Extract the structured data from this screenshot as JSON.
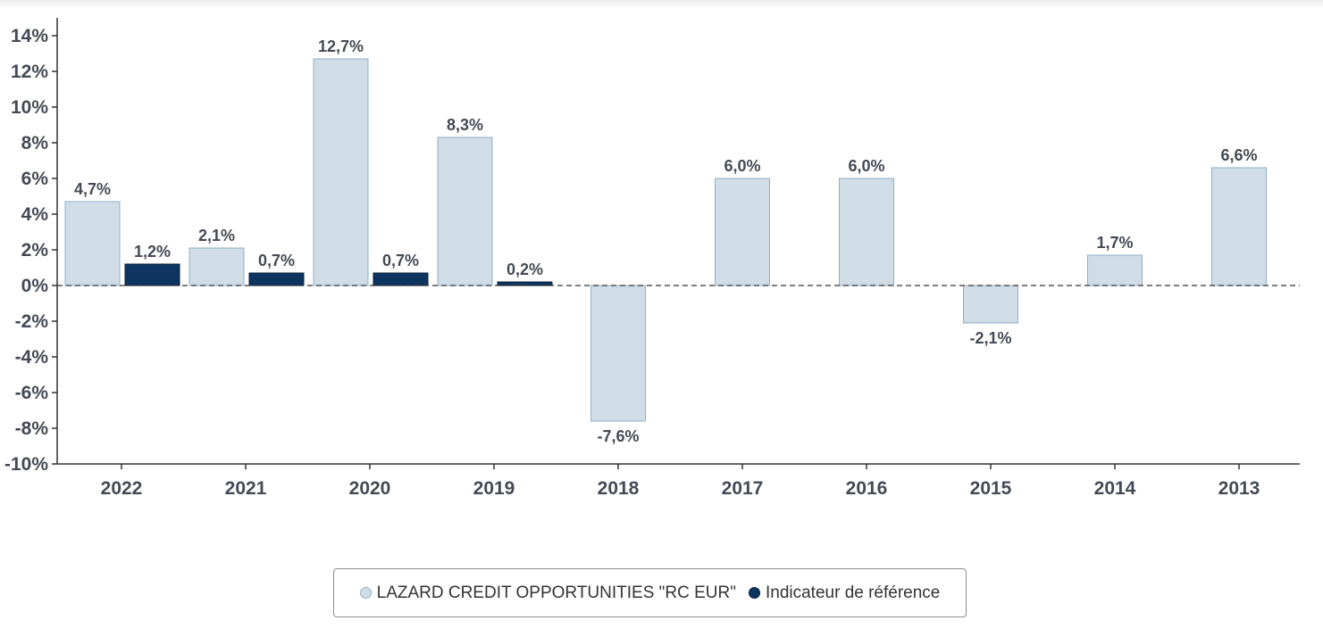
{
  "chart_data": {
    "type": "bar",
    "categories": [
      "2022",
      "2021",
      "2020",
      "2019",
      "2018",
      "2017",
      "2016",
      "2015",
      "2014",
      "2013"
    ],
    "series": [
      {
        "name": "LAZARD CREDIT OPPORTUNITIES \"RC EUR\"",
        "values": [
          4.7,
          2.1,
          12.7,
          8.3,
          -7.6,
          6.0,
          6.0,
          -2.1,
          1.7,
          6.6
        ],
        "labels": [
          "4,7%",
          "2,1%",
          "12,7%",
          "8,3%",
          "-7,6%",
          "6,0%",
          "6,0%",
          "-2,1%",
          "1,7%",
          "6,6%"
        ],
        "color": "#d0dde7",
        "stroke": "#8fb0c6"
      },
      {
        "name": "Indicateur de référence",
        "values": [
          1.2,
          0.7,
          0.7,
          0.2,
          null,
          null,
          null,
          null,
          null,
          null
        ],
        "labels": [
          "1,2%",
          "0,7%",
          "0,7%",
          "0,2%",
          null,
          null,
          null,
          null,
          null,
          null
        ],
        "color": "#0d3560",
        "stroke": "#061f3a"
      }
    ],
    "yticks": [
      14,
      12,
      10,
      8,
      6,
      4,
      2,
      0,
      -2,
      -4,
      -6,
      -8,
      -10
    ],
    "ytick_labels": [
      "14%",
      "12%",
      "10%",
      "8%",
      "6%",
      "4%",
      "2%",
      "0%",
      "-2%",
      "-4%",
      "-6%",
      "-8%",
      "-10%"
    ],
    "ylim": [
      -10,
      15
    ],
    "zero_line": "dashed",
    "grid": false,
    "legend_position": "bottom-center",
    "title": "",
    "xlabel": "",
    "ylabel": ""
  }
}
